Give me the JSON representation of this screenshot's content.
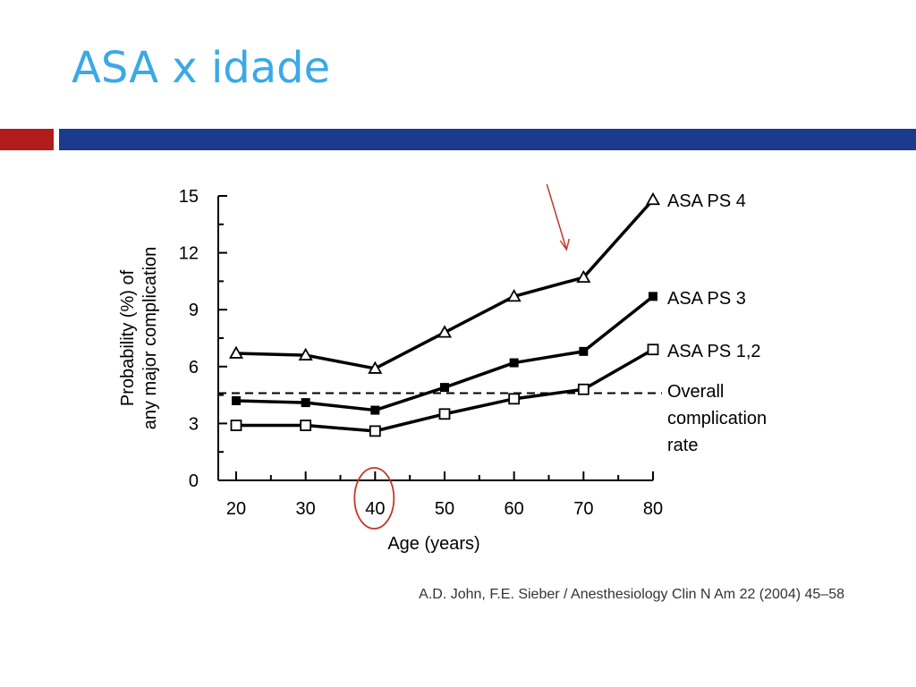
{
  "slide": {
    "title": "ASA x idade",
    "citation": "A.D. John, F.E. Sieber / Anesthesiology Clin N Am 22 (2004) 45–58"
  },
  "colors": {
    "title": "#3aa9e6",
    "bar_red": "#b01c1c",
    "bar_blue": "#1d3b8c",
    "annotation": "#c0392b",
    "ink": "#000000"
  },
  "chart_data": {
    "type": "line",
    "x": [
      20,
      30,
      40,
      50,
      60,
      70,
      80
    ],
    "xlabel": "Age (years)",
    "ylabel_lines": [
      "Probability (%) of",
      "any major complication"
    ],
    "xlim": [
      20,
      80
    ],
    "ylim": [
      0,
      15
    ],
    "yticks": [
      0,
      3,
      6,
      9,
      12,
      15
    ],
    "grid": false,
    "legend": "end-of-line labels",
    "series": [
      {
        "name": "ASA PS 4",
        "marker": "triangle-open",
        "values": [
          6.7,
          6.6,
          5.9,
          7.8,
          9.7,
          10.7,
          14.8
        ]
      },
      {
        "name": "ASA PS 3",
        "marker": "square-filled",
        "values": [
          4.2,
          4.1,
          3.7,
          4.9,
          6.2,
          6.8,
          9.7
        ]
      },
      {
        "name": "ASA PS 1,2",
        "marker": "square-open",
        "values": [
          2.9,
          2.9,
          2.6,
          3.5,
          4.3,
          4.8,
          6.9
        ]
      }
    ],
    "reference_line": {
      "value": 4.6,
      "style": "dashed",
      "label_lines": [
        "Overall",
        "complication",
        "rate"
      ]
    },
    "annotations": [
      {
        "type": "circle",
        "target_x": 40
      },
      {
        "type": "arrow",
        "target": "ASA PS 4",
        "target_x": 70
      }
    ]
  }
}
